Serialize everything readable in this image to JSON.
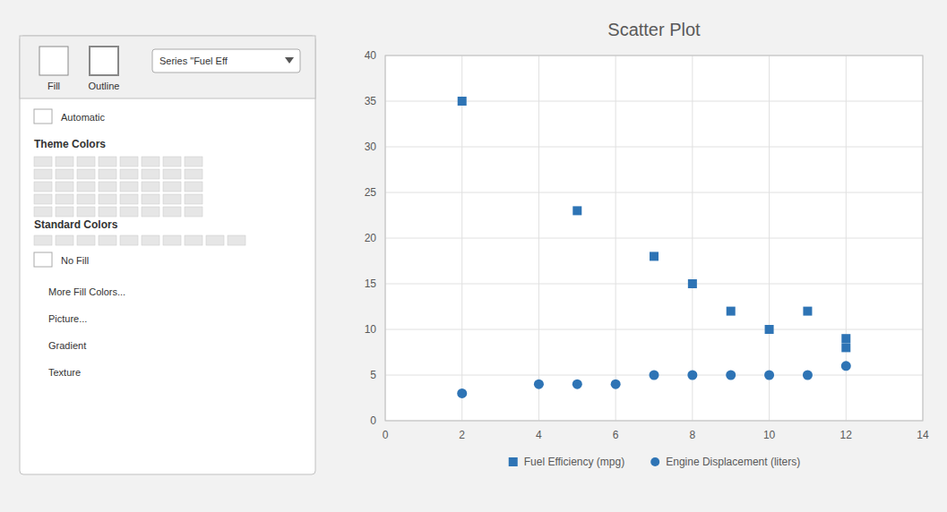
{
  "chart_data": {
    "type": "scatter",
    "title": "Scatter Plot",
    "xlim": [
      0,
      14
    ],
    "ylim": [
      0,
      40
    ],
    "xticks": [
      0,
      2,
      4,
      6,
      8,
      10,
      12,
      14
    ],
    "yticks": [
      0,
      5,
      10,
      15,
      20,
      25,
      30,
      35,
      40
    ],
    "grid": true,
    "legend": "bottom",
    "series": [
      {
        "name": "Fuel Efficiency (mpg)",
        "color": "#2e74b5",
        "marker": "square",
        "x": [
          2,
          5,
          7,
          8,
          9,
          10,
          11,
          12,
          12
        ],
        "values": [
          35,
          23,
          18,
          15,
          12,
          10,
          12,
          9,
          8
        ]
      },
      {
        "name": "Engine Displacement (liters)",
        "color": "#2e74b5",
        "marker": "circle",
        "x": [
          2,
          4,
          5,
          6,
          7,
          8,
          9,
          10,
          11,
          12
        ],
        "values": [
          3,
          4,
          4,
          4,
          5,
          5,
          5,
          5,
          5,
          6
        ]
      }
    ],
    "annotations": [
      "Fill",
      "Outline",
      "Series \"Fuel Eff",
      "Automatic",
      "Theme Colors",
      "Standard Colors",
      "No Fill",
      "More Fill Colors...",
      "Picture...",
      "Gradient",
      "Texture"
    ]
  }
}
